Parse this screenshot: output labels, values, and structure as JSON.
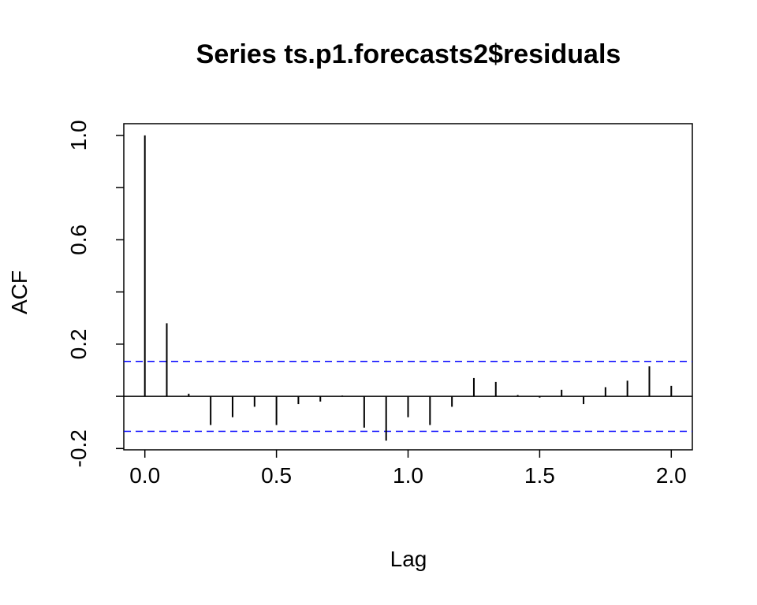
{
  "chart_data": {
    "type": "bar",
    "title": "Series  ts.p1.forecasts2$residuals",
    "xlabel": "Lag",
    "ylabel": "ACF",
    "xlim": [
      -0.08,
      2.08
    ],
    "ylim": [
      -0.205,
      1.045
    ],
    "x_ticks": [
      0.0,
      0.5,
      1.0,
      1.5,
      2.0
    ],
    "x_tick_labels": [
      "0.0",
      "0.5",
      "1.0",
      "1.5",
      "2.0"
    ],
    "y_ticks": [
      -0.2,
      0.0,
      0.2,
      0.4,
      0.6,
      0.8,
      1.0
    ],
    "y_tick_labels": [
      "-0.2",
      "",
      "0.2",
      "",
      "0.6",
      "",
      "1.0"
    ],
    "lags": [
      0.0,
      0.0833,
      0.1667,
      0.25,
      0.3333,
      0.4167,
      0.5,
      0.5833,
      0.6667,
      0.75,
      0.8333,
      0.9167,
      1.0,
      1.0833,
      1.1667,
      1.25,
      1.3333,
      1.4167,
      1.5,
      1.5833,
      1.6667,
      1.75,
      1.8333,
      1.9167,
      2.0
    ],
    "acf": [
      1.0,
      0.28,
      0.01,
      -0.11,
      -0.08,
      -0.04,
      -0.11,
      -0.03,
      -0.02,
      0.003,
      -0.12,
      -0.17,
      -0.08,
      -0.11,
      -0.04,
      0.07,
      0.055,
      0.005,
      -0.005,
      0.025,
      -0.03,
      0.035,
      0.06,
      0.115,
      0.04
    ],
    "ci_upper": 0.134,
    "ci_lower": -0.134,
    "ci_color": "#0000ff",
    "line_color": "#000000",
    "grid": false
  }
}
